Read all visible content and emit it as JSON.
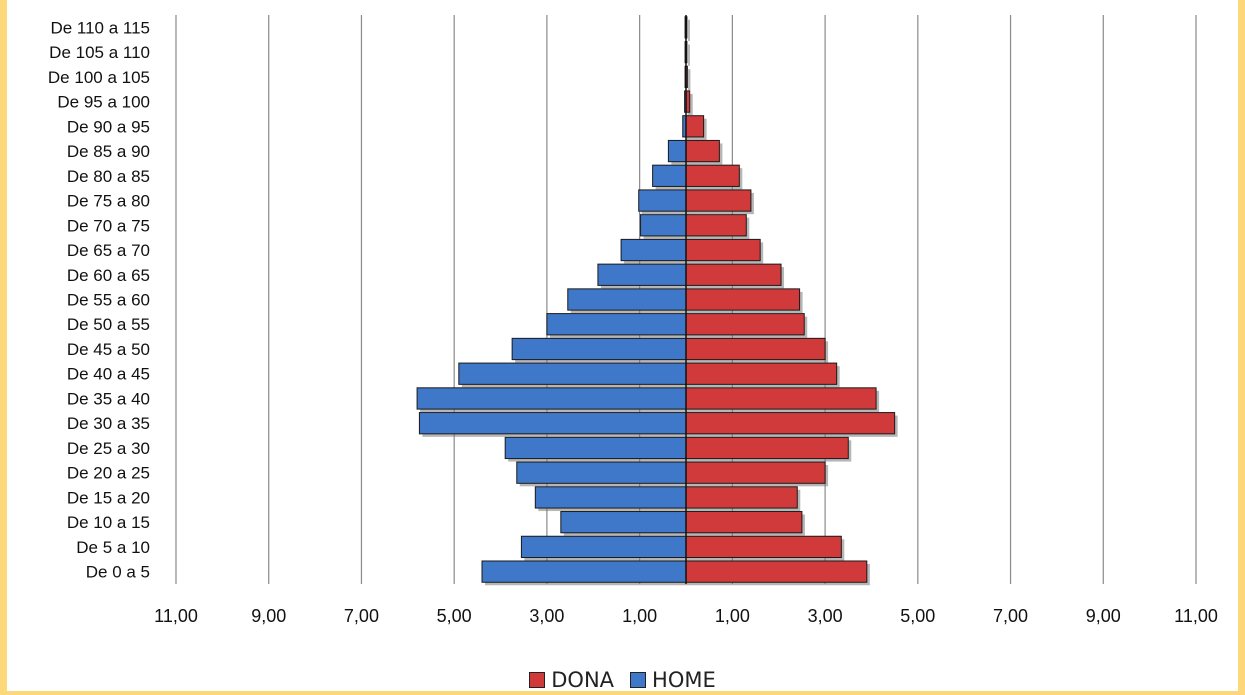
{
  "chart_data": {
    "type": "bar",
    "orientation": "horizontal",
    "layout": "population-pyramid",
    "categories": [
      "De 0 a 5",
      "De 5 a 10",
      "De 10 a 15",
      "De 15 a 20",
      "De 20 a 25",
      "De 25 a 30",
      "De 30 a 35",
      "De 35 a 40",
      "De 40 a 45",
      "De 45 a 50",
      "De 50 a 55",
      "De 55 a 60",
      "De 60 a 65",
      "De 65 a 70",
      "De 70 a 75",
      "De 75 a 80",
      "De 80 a 85",
      "De 85 a 90",
      "De 90 a 95",
      "De 95 a 100",
      "De 100 a 105",
      "De 105 a 110",
      "De 110 a 115"
    ],
    "series": [
      {
        "name": "HOME",
        "color": "#3f78c8",
        "side": "left",
        "values": [
          4.4,
          3.55,
          2.7,
          3.25,
          3.65,
          3.9,
          5.75,
          5.8,
          4.9,
          3.75,
          3.0,
          2.55,
          1.9,
          1.4,
          0.98,
          1.02,
          0.72,
          0.38,
          0.07,
          0.03,
          0.02,
          0.02,
          0.02
        ]
      },
      {
        "name": "DONA",
        "color": "#d13a3a",
        "side": "right",
        "values": [
          3.9,
          3.35,
          2.5,
          2.4,
          3.0,
          3.5,
          4.5,
          4.1,
          3.25,
          3.0,
          2.55,
          2.45,
          2.05,
          1.6,
          1.3,
          1.4,
          1.15,
          0.72,
          0.38,
          0.08,
          0.03,
          0.02,
          0.02
        ]
      }
    ],
    "x_ticks": [
      "11,00",
      "9,00",
      "7,00",
      "5,00",
      "3,00",
      "1,00",
      "1,00",
      "3,00",
      "5,00",
      "7,00",
      "9,00",
      "11,00"
    ],
    "x_tick_values": [
      -11,
      -9,
      -7,
      -5,
      -3,
      -1,
      1,
      3,
      5,
      7,
      9,
      11
    ],
    "xlim": [
      -11,
      11
    ],
    "grid": "vertical",
    "title": "",
    "xlabel": "",
    "ylabel": "",
    "legend_position": "bottom"
  },
  "legend": {
    "items": [
      {
        "label": "DONA",
        "color": "#d13a3a"
      },
      {
        "label": "HOME",
        "color": "#3f78c8"
      }
    ]
  }
}
